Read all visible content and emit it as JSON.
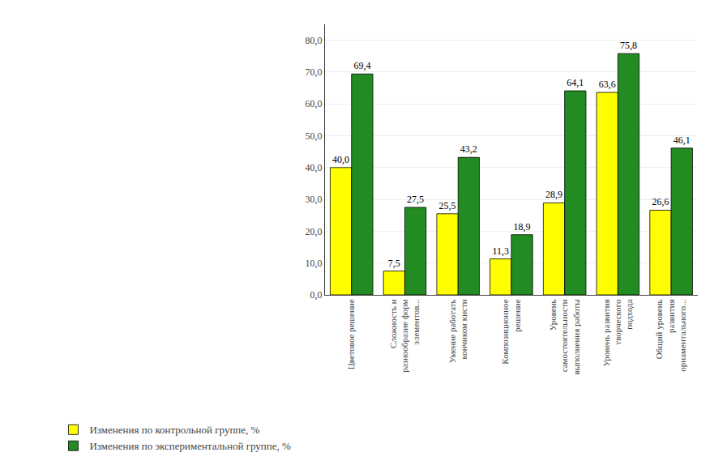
{
  "chart_data": {
    "type": "bar",
    "categories": [
      "Цветовое решение",
      "Сложность и\nразнообразие форм\nэлементов...",
      "Умение работать\nкончиком кисти",
      "Композиционное\nрешение",
      "Уровень\nсамостоятельности\nвыполнения работы",
      "Уровень развития\nтворческого\nподхода",
      "Общий уровень\nразвития\nорнаментального..."
    ],
    "series": [
      {
        "name": "Изменения по контрольной группе, %",
        "color": "#FFFF00",
        "values": [
          40.0,
          7.5,
          25.5,
          11.3,
          28.9,
          63.6,
          26.6
        ],
        "value_labels": [
          "40,0",
          "7,5",
          "25,5",
          "11,3",
          "28,9",
          "63,6",
          "26,6"
        ]
      },
      {
        "name": "Изменения по экспериментальной группе, %",
        "color": "#228B22",
        "values": [
          69.4,
          27.5,
          43.2,
          18.9,
          64.1,
          75.8,
          46.1
        ],
        "value_labels": [
          "69,4",
          "27,5",
          "43,2",
          "18,9",
          "64,1",
          "75,8",
          "46,1"
        ]
      }
    ],
    "ylim": [
      0,
      85
    ],
    "yticks": [
      {
        "value": 0,
        "label": "0,0"
      },
      {
        "value": 10,
        "label": "10,0"
      },
      {
        "value": 20,
        "label": "20,0"
      },
      {
        "value": 30,
        "label": "30,0"
      },
      {
        "value": 40,
        "label": "40,0"
      },
      {
        "value": 50,
        "label": "50,0"
      },
      {
        "value": 60,
        "label": "60,0"
      },
      {
        "value": 70,
        "label": "70,0"
      },
      {
        "value": 80,
        "label": "80,0"
      }
    ],
    "grid": true,
    "data_labels": true,
    "legend": "bottom"
  }
}
